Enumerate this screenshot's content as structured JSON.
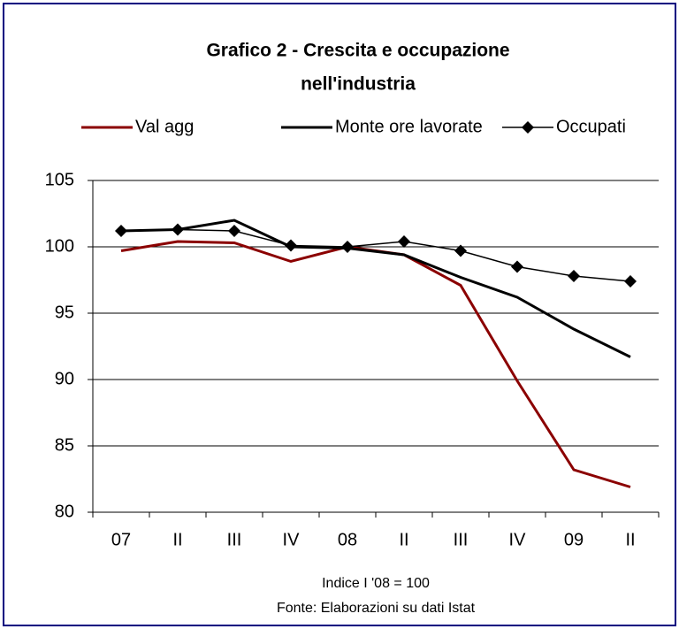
{
  "chart_data": {
    "type": "line",
    "title": [
      "Grafico 2 - Crescita e occupazione",
      "nell'industria"
    ],
    "categories": [
      "07",
      "II",
      "III",
      "IV",
      "08",
      "II",
      "III",
      "IV",
      "09",
      "II"
    ],
    "series": [
      {
        "name": "Val agg",
        "color": "#8b0000",
        "values": [
          99.7,
          100.4,
          100.3,
          98.9,
          100.0,
          99.4,
          97.1,
          89.9,
          83.2,
          81.9
        ]
      },
      {
        "name": "Monte ore lavorate",
        "color": "#000000",
        "values": [
          101.2,
          101.3,
          102.0,
          100.0,
          99.9,
          99.4,
          97.7,
          96.2,
          93.8,
          91.7
        ]
      },
      {
        "name": "Occupati",
        "color": "#000000",
        "marker": "diamond",
        "values": [
          101.2,
          101.3,
          101.2,
          100.1,
          100.0,
          100.4,
          99.7,
          98.5,
          97.8,
          97.4
        ]
      }
    ],
    "ylim": [
      80,
      105
    ],
    "yticks": [
      80,
      85,
      90,
      95,
      100,
      105
    ],
    "grid": true,
    "annotations": [
      "Indice I '08 = 100",
      "Fonte: Elaborazioni su dati Istat"
    ]
  }
}
